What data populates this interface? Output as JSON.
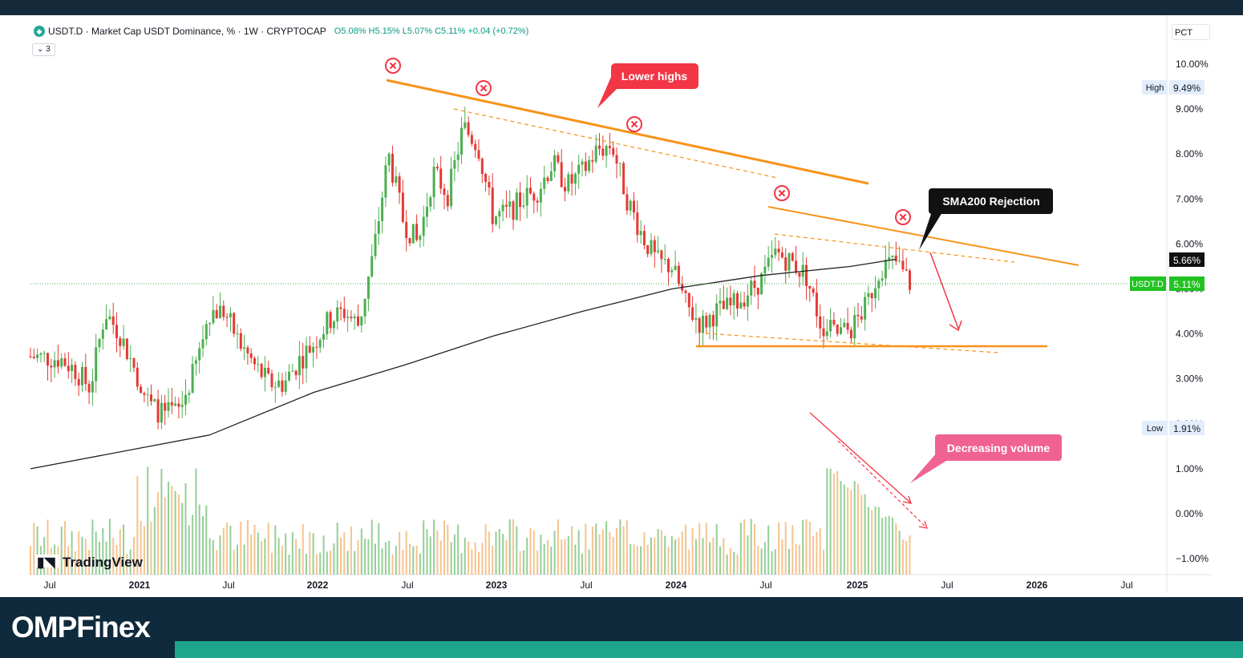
{
  "header": {
    "symbol_title": "USDT.D · Market Cap USDT Dominance, % · 1W · CRYPTOCAP",
    "ohlc": "O5.08% H5.15% L5.07% C5.11% +0.04 (+0.72%)",
    "indicator_count": "3"
  },
  "scale_mode": "PCT",
  "brand": {
    "logo": "OMPFinex",
    "watermark": "TradingView"
  },
  "annotations": {
    "lower_highs": "Lower highs",
    "sma_rejection": "SMA200 Rejection",
    "decreasing_volume": "Decreasing volume"
  },
  "price_tags": {
    "high_label": "High",
    "high_value": "9.49%",
    "low_label": "Low",
    "low_value": "1.91%",
    "sma_value": "5.66%",
    "current_label": "USDT.D",
    "current_value": "5.11%"
  },
  "colors": {
    "up": "#4caf50",
    "down": "#e53935",
    "trend": "#f7931a",
    "sma": "#222222",
    "footer": "#0f2a3c",
    "accent": "#1ea58b",
    "callout": "#f23645",
    "volume_callout": "#f06292"
  },
  "chart_data": {
    "type": "candlestick",
    "title": "USDT.D · Market Cap USDT Dominance, % · 1W · CRYPTOCAP",
    "y_ticks": [
      "10.00%",
      "9.00%",
      "8.00%",
      "7.00%",
      "6.00%",
      "5.00%",
      "4.00%",
      "3.00%",
      "2.00%",
      "1.00%",
      "0.00%",
      "−1.00%"
    ],
    "x_ticks": [
      "Jul",
      "2021",
      "Jul",
      "2022",
      "Jul",
      "2023",
      "Jul",
      "2024",
      "Jul",
      "2025",
      "Jul",
      "2026",
      "Jul"
    ],
    "ylim": [
      -1.2,
      10.5
    ],
    "price_path": [
      [
        "2020-06",
        3.5
      ],
      [
        "2020-08",
        3.45
      ],
      [
        "2020-09",
        3.2
      ],
      [
        "2020-10",
        2.8
      ],
      [
        "2020-11",
        4.5
      ],
      [
        "2020-12",
        4.0
      ],
      [
        "2021-01",
        3.2
      ],
      [
        "2021-02",
        2.4
      ],
      [
        "2021-03",
        2.2
      ],
      [
        "2021-04",
        2.3
      ],
      [
        "2021-05",
        3.2
      ],
      [
        "2021-06",
        4.5
      ],
      [
        "2021-07",
        4.5
      ],
      [
        "2021-08",
        3.8
      ],
      [
        "2021-09",
        3.3
      ],
      [
        "2021-10",
        2.9
      ],
      [
        "2021-11",
        2.9
      ],
      [
        "2021-12",
        3.4
      ],
      [
        "2022-01",
        3.8
      ],
      [
        "2022-02",
        4.3
      ],
      [
        "2022-03",
        4.5
      ],
      [
        "2022-04",
        4.2
      ],
      [
        "2022-05",
        5.8
      ],
      [
        "2022-06",
        8.0
      ],
      [
        "2022-07",
        6.5
      ],
      [
        "2022-08",
        6.0
      ],
      [
        "2022-09",
        7.6
      ],
      [
        "2022-10",
        7.1
      ],
      [
        "2022-11",
        8.6
      ],
      [
        "2022-12",
        8.2
      ],
      [
        "2023-01",
        6.6
      ],
      [
        "2023-02",
        6.7
      ],
      [
        "2023-03",
        7.0
      ],
      [
        "2023-04",
        7.2
      ],
      [
        "2023-05",
        7.8
      ],
      [
        "2023-06",
        7.3
      ],
      [
        "2023-07",
        7.6
      ],
      [
        "2023-08",
        8.1
      ],
      [
        "2023-09",
        8.2
      ],
      [
        "2023-10",
        7.0
      ],
      [
        "2023-11",
        6.2
      ],
      [
        "2023-12",
        5.6
      ],
      [
        "2024-01",
        5.5
      ],
      [
        "2024-02",
        4.6
      ],
      [
        "2024-03",
        4.2
      ],
      [
        "2024-04",
        4.5
      ],
      [
        "2024-05",
        4.6
      ],
      [
        "2024-06",
        4.9
      ],
      [
        "2024-07",
        5.2
      ],
      [
        "2024-08",
        5.8
      ],
      [
        "2024-09",
        5.6
      ],
      [
        "2024-10",
        5.3
      ],
      [
        "2024-11",
        4.2
      ],
      [
        "2024-12",
        4.0
      ],
      [
        "2025-01",
        4.1
      ],
      [
        "2025-02",
        4.6
      ],
      [
        "2025-03",
        5.5
      ],
      [
        "2025-04",
        5.6
      ],
      [
        "2025-05",
        5.11
      ]
    ],
    "sma200_path": [
      [
        "2020-06",
        1.0
      ],
      [
        "2021-06",
        1.75
      ],
      [
        "2022-01",
        2.7
      ],
      [
        "2022-07",
        3.3
      ],
      [
        "2023-01",
        3.95
      ],
      [
        "2023-07",
        4.5
      ],
      [
        "2024-01",
        5.0
      ],
      [
        "2024-07",
        5.3
      ],
      [
        "2025-01",
        5.5
      ],
      [
        "2025-04",
        5.66
      ]
    ],
    "volume_note": "Decreasing volume after late-2024 spike"
  }
}
